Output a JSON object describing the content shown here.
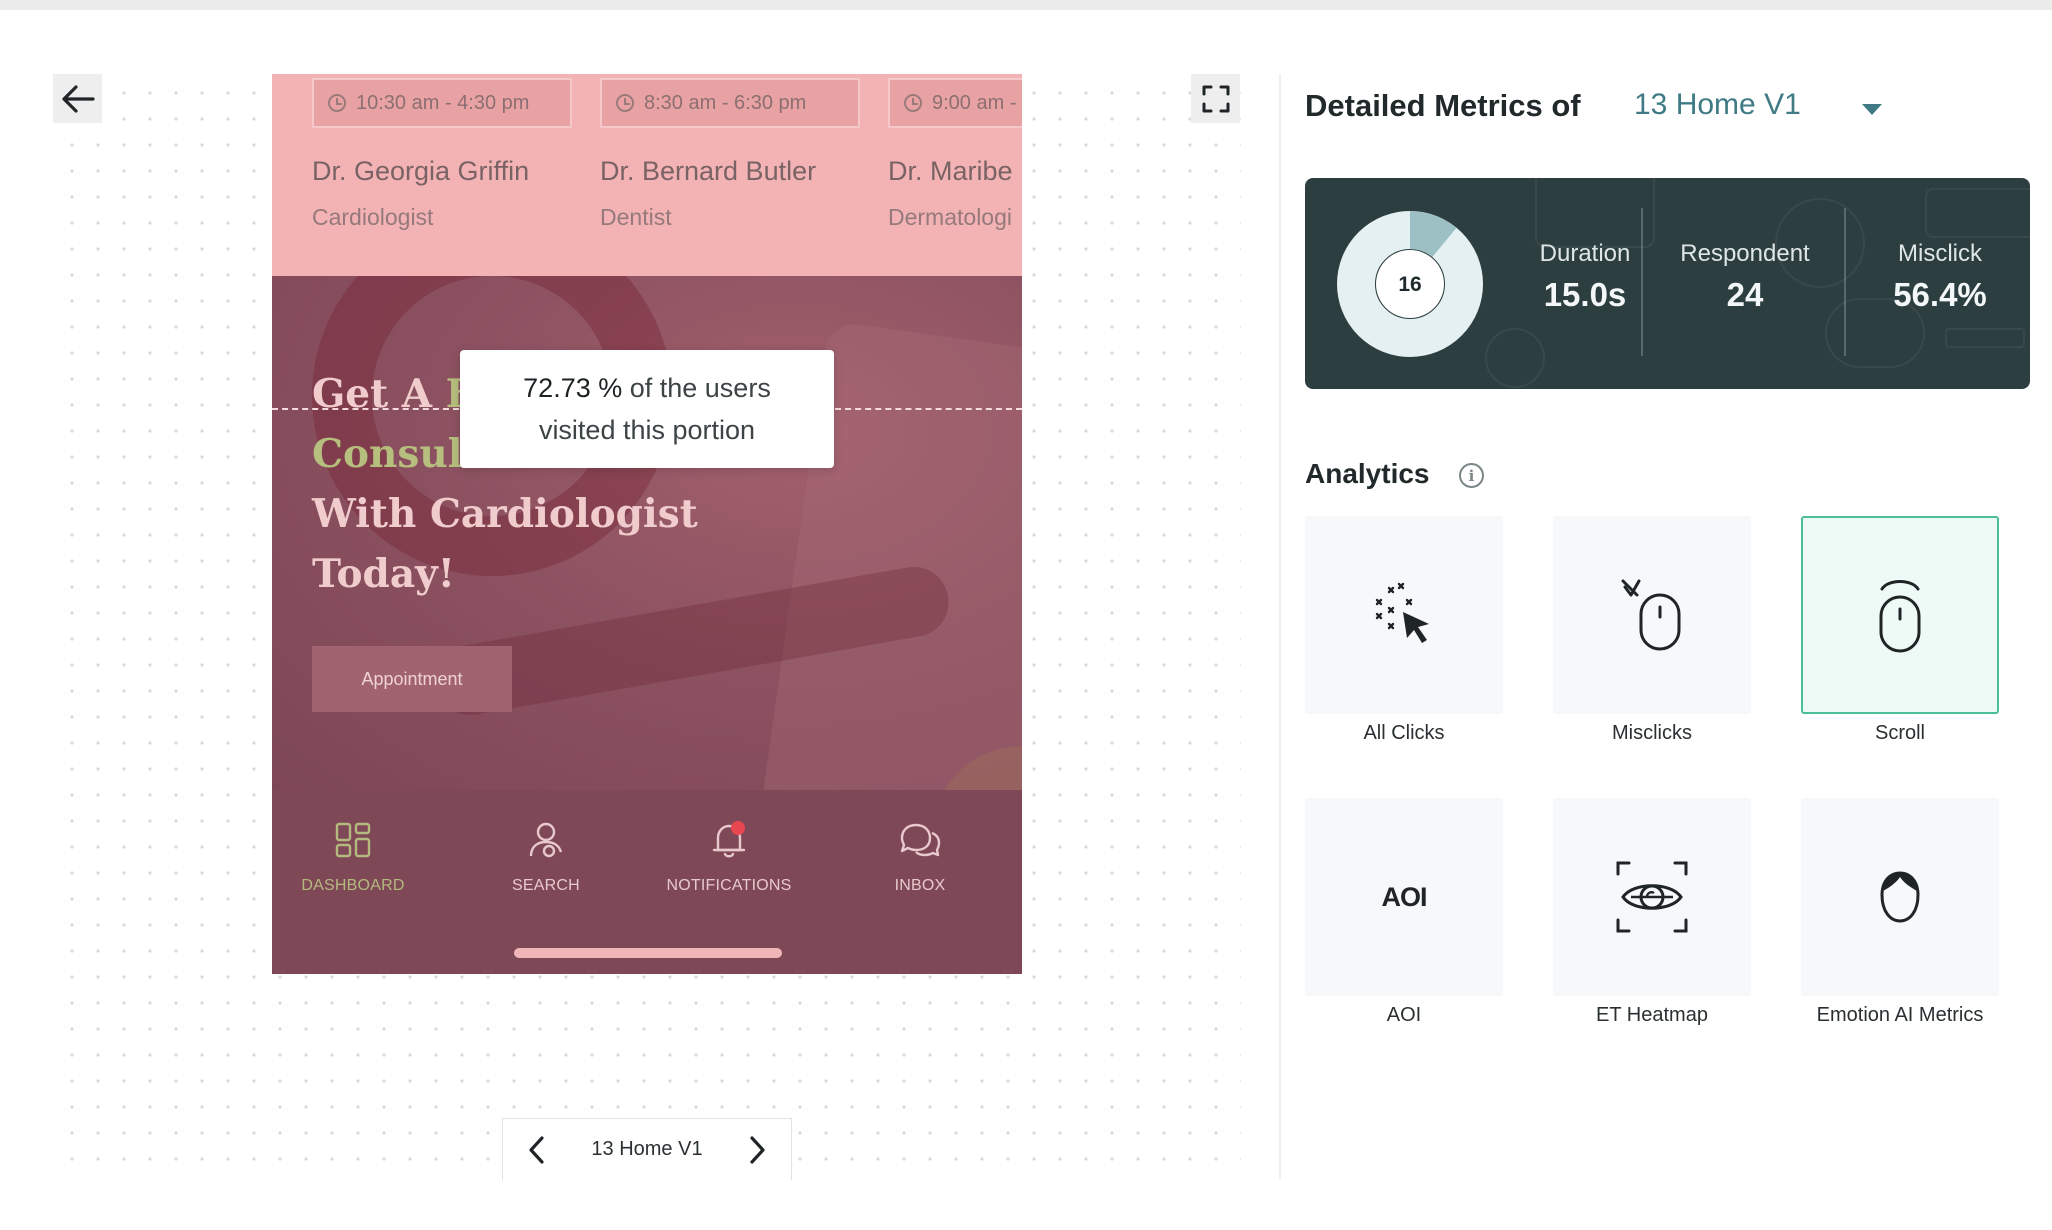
{
  "canvas": {
    "phone": {
      "doctors": [
        {
          "time": "10:30 am - 4:30 pm",
          "name": "Dr. Georgia Griffin",
          "specialty": "Cardiologist"
        },
        {
          "time": "8:30 am - 6:30 pm",
          "name": "Dr. Bernard Butler",
          "specialty": "Dentist"
        },
        {
          "time": "9:00 am -",
          "name": "Dr. Maribe",
          "specialty": "Dermatologi"
        }
      ],
      "hero": {
        "line1_plain": "Get A ",
        "line1_accent": "Fr",
        "line2_accent": "Consult",
        "line3": "With Cardiologist",
        "line4": "Today!",
        "button": "Appointment"
      },
      "tooltip": {
        "percent": "72.73 %",
        "text_rest": " of the users",
        "line2": "visited this portion"
      },
      "nav": [
        {
          "label": "DASHBOARD",
          "icon": "dashboard-icon",
          "active": true
        },
        {
          "label": "SEARCH",
          "icon": "user-search-icon",
          "active": false
        },
        {
          "label": "NOTIFICATIONS",
          "icon": "bell-icon",
          "active": false
        },
        {
          "label": "INBOX",
          "icon": "chat-icon",
          "active": false
        }
      ]
    },
    "pager": {
      "label": "13 Home V1"
    }
  },
  "panel": {
    "title": "Detailed Metrics of",
    "selected_version": "13 Home V1",
    "stats": {
      "donut_value": "16",
      "donut_fraction": 0.11,
      "duration_label": "Duration",
      "duration_value": "15.0s",
      "respondent_label": "Respondent",
      "respondent_value": "24",
      "misclick_label": "Misclick",
      "misclick_value": "56.4%"
    },
    "analytics_title": "Analytics",
    "tiles": [
      {
        "label": "All Clicks",
        "icon": "all-clicks-icon",
        "selected": false
      },
      {
        "label": "Misclicks",
        "icon": "misclick-mouse-icon",
        "selected": false
      },
      {
        "label": "Scroll",
        "icon": "scroll-mouse-icon",
        "selected": true
      },
      {
        "label": "AOI",
        "icon": "aoi-icon",
        "icon_text": "AOI",
        "selected": false
      },
      {
        "label": "ET Heatmap",
        "icon": "eye-tracking-icon",
        "selected": false
      },
      {
        "label": "Emotion AI Metrics",
        "icon": "emotion-face-icon",
        "selected": false
      }
    ]
  },
  "colors": {
    "accent_teal": "#3f7a85",
    "card_dark": "#2d3e40",
    "selected_tile_border": "#4dbf97",
    "phone_pink": "#f3b3b4",
    "phone_maroon": "#7f4857"
  }
}
